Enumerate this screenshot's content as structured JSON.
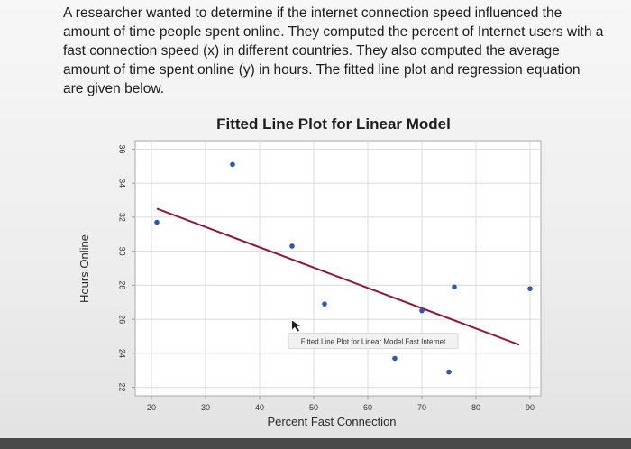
{
  "problem": {
    "text": "A researcher wanted to determine if the internet connection speed influenced the amount of time people spent online. They computed the percent of Internet users with a fast connection speed (x) in different countries. They also computed the average amount of time spent online (y) in hours. The fitted line plot and regression equation are given below."
  },
  "chart_data": {
    "type": "scatter",
    "title": "Fitted Line Plot for Linear Model",
    "xlabel": "Percent Fast Connection",
    "ylabel": "Hours Online",
    "xlim": [
      17,
      92
    ],
    "ylim": [
      21.5,
      36.5
    ],
    "x_ticks": [
      20,
      30,
      40,
      50,
      60,
      70,
      80,
      90
    ],
    "y_ticks": [
      22,
      24,
      26,
      28,
      30,
      32,
      34,
      36
    ],
    "grid": true,
    "points": [
      {
        "x": 21,
        "y": 31.7
      },
      {
        "x": 35,
        "y": 35.1
      },
      {
        "x": 46,
        "y": 30.3
      },
      {
        "x": 52,
        "y": 26.9
      },
      {
        "x": 65,
        "y": 23.7
      },
      {
        "x": 70,
        "y": 26.5
      },
      {
        "x": 75,
        "y": 22.9
      },
      {
        "x": 76,
        "y": 27.9
      },
      {
        "x": 90,
        "y": 27.8
      }
    ],
    "fit_line": {
      "x": [
        21,
        88
      ],
      "y": [
        32.5,
        24.5
      ]
    },
    "annotation": {
      "text": "Fitted Line Plot for Linear Model Fast Internet",
      "x": 59,
      "y": 24.7
    }
  },
  "colors": {
    "point": "#2d56b3",
    "fit_line": "#8b1a3b",
    "grid": "#dcdcdc",
    "axis": "#9a9a9a"
  }
}
